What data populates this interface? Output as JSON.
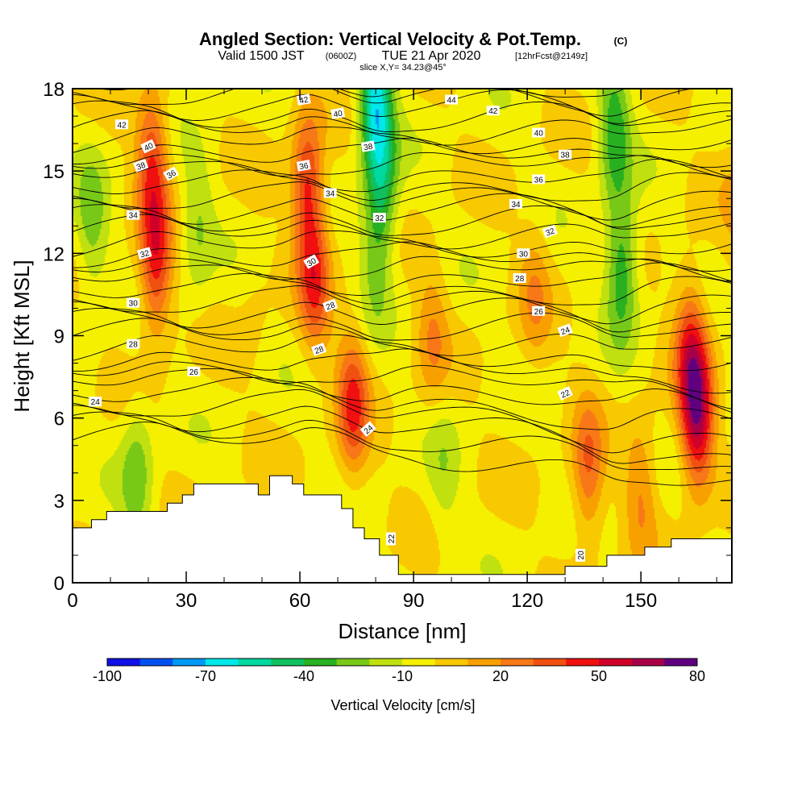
{
  "figure": {
    "title": "Angled Section: Vertical Velocity & Pot.Temp.",
    "title_unit": "(C)",
    "subtitle_valid": "Valid 1500 JST",
    "subtitle_zulu": "(0600Z)",
    "subtitle_date": "TUE 21 Apr 2020",
    "subtitle_fcst": "[12hrFcst@2149z]",
    "slice_text": "slice X,Y= 34.23@45°"
  },
  "chart_data": {
    "type": "heatmap",
    "xlabel": "Distance [nm]",
    "ylabel": "Height [Kft MSL]",
    "xlim": [
      0,
      174
    ],
    "ylim": [
      0,
      18
    ],
    "x_ticks": [
      "0",
      "30",
      "60",
      "90",
      "120",
      "150"
    ],
    "x_tick_values": [
      0,
      30,
      60,
      90,
      120,
      150
    ],
    "y_ticks": [
      "0",
      "3",
      "6",
      "9",
      "12",
      "15",
      "18"
    ],
    "y_tick_values": [
      0,
      3,
      6,
      9,
      12,
      15,
      18
    ],
    "colorbar": {
      "label": "Vertical Velocity [cm/s]",
      "tick_labels": [
        "-100",
        "-70",
        "-40",
        "-10",
        "20",
        "50",
        "80"
      ],
      "tick_values": [
        -100,
        -70,
        -40,
        -10,
        20,
        50,
        80
      ],
      "levels": [
        -100,
        -90,
        -80,
        -70,
        -60,
        -50,
        -40,
        -30,
        -20,
        -10,
        0,
        10,
        20,
        30,
        40,
        50,
        60,
        70,
        80
      ],
      "colors": [
        "#1010e8",
        "#0050f0",
        "#0098f5",
        "#00e8e8",
        "#00d8a0",
        "#10c060",
        "#28b020",
        "#78c818",
        "#c0e010",
        "#f5f000",
        "#f8c800",
        "#f8a000",
        "#f87818",
        "#f05010",
        "#f01010",
        "#d00028",
        "#a80048",
        "#600080"
      ]
    },
    "vertical_velocity_field": {
      "background_value": -2,
      "features": [
        {
          "x": 22,
          "z": 11.5,
          "value": 45
        },
        {
          "x": 21,
          "z": 15.5,
          "value": 40
        },
        {
          "x": 62,
          "z": 14.5,
          "value": 45
        },
        {
          "x": 64,
          "z": 11,
          "value": 38
        },
        {
          "x": 74,
          "z": 6.5,
          "value": 42
        },
        {
          "x": 80,
          "z": 17.5,
          "value": -60
        },
        {
          "x": 82,
          "z": 14.5,
          "value": -30
        },
        {
          "x": 80,
          "z": 12,
          "value": -20
        },
        {
          "x": 5,
          "z": 13,
          "value": -22
        },
        {
          "x": 17,
          "z": 4,
          "value": -24
        },
        {
          "x": 33,
          "z": 13,
          "value": -18
        },
        {
          "x": 143,
          "z": 16.5,
          "value": -35
        },
        {
          "x": 145,
          "z": 11.5,
          "value": -38
        },
        {
          "x": 136,
          "z": 4,
          "value": 32
        },
        {
          "x": 165,
          "z": 6,
          "value": 60
        },
        {
          "x": 163,
          "z": 8.5,
          "value": 40
        },
        {
          "x": 150,
          "z": 3.5,
          "value": 22
        },
        {
          "x": 95,
          "z": 9,
          "value": 20
        },
        {
          "x": 122,
          "z": 10.5,
          "value": 18
        },
        {
          "x": 98,
          "z": 4,
          "value": -12
        },
        {
          "x": 175,
          "z": 14,
          "value": 10
        },
        {
          "x": 48,
          "z": 10,
          "value": 5
        }
      ]
    },
    "terrain": {
      "description": "white terrain mask",
      "x": [
        0,
        5,
        5,
        9,
        9,
        25,
        25,
        29,
        29,
        32,
        32,
        36,
        36,
        49,
        49,
        52,
        52,
        58,
        58,
        61,
        61,
        71,
        71,
        74,
        74,
        77,
        77,
        81,
        81,
        86,
        86,
        130,
        130,
        141,
        141,
        151,
        151,
        158,
        158,
        166,
        166,
        174
      ],
      "z": [
        2.0,
        2.0,
        2.3,
        2.3,
        2.6,
        2.6,
        2.9,
        2.9,
        3.2,
        3.2,
        3.6,
        3.6,
        3.6,
        3.6,
        3.2,
        3.2,
        3.9,
        3.9,
        3.6,
        3.6,
        3.2,
        3.2,
        2.7,
        2.7,
        2.0,
        2.0,
        1.6,
        1.6,
        1.0,
        1.0,
        0.3,
        0.3,
        0.6,
        0.6,
        1.0,
        1.0,
        1.3,
        1.3,
        1.6,
        1.6,
        1.6,
        1.6
      ]
    },
    "potential_temperature_labels": [
      {
        "text": "42",
        "x": 13,
        "z": 16.7,
        "angle": 0
      },
      {
        "text": "40",
        "x": 20,
        "z": 15.9,
        "angle": -25
      },
      {
        "text": "38",
        "x": 18,
        "z": 15.2,
        "angle": -20
      },
      {
        "text": "36",
        "x": 26,
        "z": 14.9,
        "angle": -30
      },
      {
        "text": "34",
        "x": 16,
        "z": 13.4,
        "angle": 0
      },
      {
        "text": "32",
        "x": 19,
        "z": 12.0,
        "angle": -15
      },
      {
        "text": "30",
        "x": 16,
        "z": 10.2,
        "angle": 0
      },
      {
        "text": "28",
        "x": 16,
        "z": 8.7,
        "angle": 0
      },
      {
        "text": "26",
        "x": 32,
        "z": 7.7,
        "angle": 0
      },
      {
        "text": "24",
        "x": 6,
        "z": 6.6,
        "angle": 0
      },
      {
        "text": "42",
        "x": 61,
        "z": 17.6,
        "angle": -10
      },
      {
        "text": "40",
        "x": 70,
        "z": 17.1,
        "angle": -10
      },
      {
        "text": "38",
        "x": 78,
        "z": 15.9,
        "angle": -10
      },
      {
        "text": "36",
        "x": 61,
        "z": 15.2,
        "angle": -10
      },
      {
        "text": "34",
        "x": 68,
        "z": 14.2,
        "angle": 0
      },
      {
        "text": "32",
        "x": 81,
        "z": 13.3,
        "angle": 0
      },
      {
        "text": "30",
        "x": 63,
        "z": 11.7,
        "angle": -30
      },
      {
        "text": "28",
        "x": 68,
        "z": 10.1,
        "angle": -20
      },
      {
        "text": "28",
        "x": 65,
        "z": 8.5,
        "angle": -20
      },
      {
        "text": "24",
        "x": 78,
        "z": 5.6,
        "angle": -40
      },
      {
        "text": "22",
        "x": 84,
        "z": 1.6,
        "angle": -90
      },
      {
        "text": "44",
        "x": 100,
        "z": 17.6,
        "angle": 0
      },
      {
        "text": "42",
        "x": 111,
        "z": 17.2,
        "angle": 0
      },
      {
        "text": "40",
        "x": 123,
        "z": 16.4,
        "angle": 0
      },
      {
        "text": "38",
        "x": 130,
        "z": 15.6,
        "angle": 0
      },
      {
        "text": "36",
        "x": 123,
        "z": 14.7,
        "angle": 0
      },
      {
        "text": "34",
        "x": 117,
        "z": 13.8,
        "angle": 0
      },
      {
        "text": "32",
        "x": 126,
        "z": 12.8,
        "angle": -20
      },
      {
        "text": "30",
        "x": 119,
        "z": 12.0,
        "angle": 0
      },
      {
        "text": "28",
        "x": 118,
        "z": 11.1,
        "angle": 0
      },
      {
        "text": "26",
        "x": 123,
        "z": 9.9,
        "angle": 0
      },
      {
        "text": "24",
        "x": 130,
        "z": 9.2,
        "angle": -20
      },
      {
        "text": "22",
        "x": 130,
        "z": 6.9,
        "angle": -25
      },
      {
        "text": "20",
        "x": 134,
        "z": 1.0,
        "angle": -90
      }
    ]
  }
}
